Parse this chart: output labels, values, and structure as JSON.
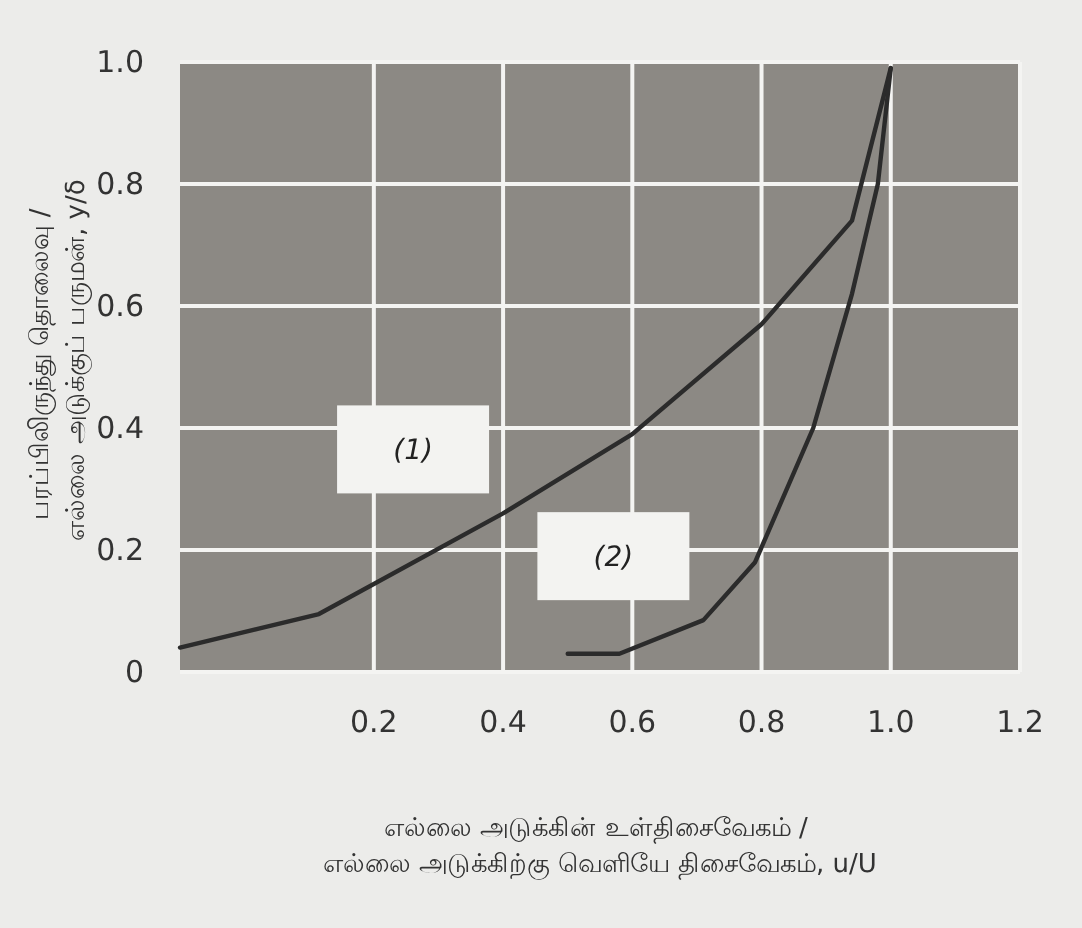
{
  "chart_data": {
    "type": "line",
    "xlabel": "எல்லை அடுக்கின் உள்திசைவேகம் / எல்லை அடுக்கிற்கு வெளியே திசைவேகம், u/U",
    "ylabel": "பரப்பிலிருந்து தொலைவு / எல்லை அடுக்குப் பருமன், y/δ",
    "xlim": [
      -0.1,
      1.2
    ],
    "ylim": [
      0,
      1.0
    ],
    "xticks": [
      0.2,
      0.4,
      0.6,
      0.8,
      {
        "value": 1.0,
        "label": "1.0"
      },
      1.2
    ],
    "yticks": [
      0,
      0.2,
      0.4,
      0.6,
      0.8,
      {
        "value": 1.0,
        "label": "1.0"
      }
    ],
    "grid": true,
    "series": [
      {
        "name": "(1)",
        "color": "#2b2b2b",
        "x": [
          -0.1,
          0.115,
          0.4,
          0.6,
          0.8,
          0.94,
          1.0
        ],
        "values": [
          0.04,
          0.095,
          0.26,
          0.39,
          0.57,
          0.74,
          0.99
        ]
      },
      {
        "name": "(2)",
        "color": "#2b2b2b",
        "x": [
          0.5,
          0.58,
          0.71,
          0.79,
          0.88,
          0.94,
          0.98,
          1.0
        ],
        "values": [
          0.03,
          0.03,
          0.085,
          0.18,
          0.4,
          0.62,
          0.8,
          0.99
        ]
      }
    ]
  }
}
